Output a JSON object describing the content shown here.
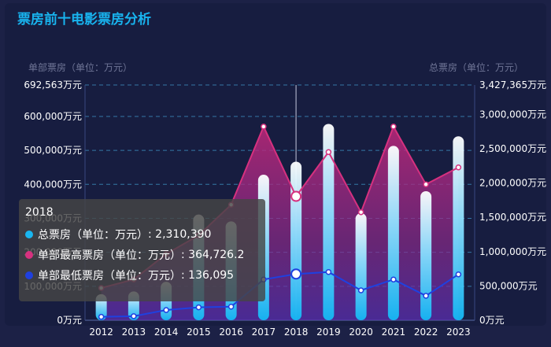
{
  "title": "票房前十电影票房分析",
  "chart_data": {
    "type": "bar",
    "categories": [
      "2012",
      "2013",
      "2014",
      "2015",
      "2016",
      "2017",
      "2018",
      "2019",
      "2020",
      "2021",
      "2022",
      "2023"
    ],
    "y_left": {
      "label": "单部票房（单位：万元）",
      "max": 692563,
      "ticks": [
        0,
        100000,
        200000,
        300000,
        400000,
        500000,
        600000,
        692563
      ],
      "tick_labels": [
        "0万元",
        "100,000万元",
        "200,000万元",
        "300,000万元",
        "400,000万元",
        "500,000万元",
        "600,000万元",
        "692,563万元"
      ]
    },
    "y_right": {
      "label": "总票房（单位：万元）",
      "max": 3427365,
      "ticks": [
        0,
        500000,
        1000000,
        1500000,
        2000000,
        2500000,
        3000000,
        3427365
      ],
      "tick_labels": [
        "0万元",
        "500,000万元",
        "1,000,000万元",
        "1,500,000万元",
        "2,000,000万元",
        "2,500,000万元",
        "3,000,000万元",
        "3,427,365万元"
      ]
    },
    "series": [
      {
        "name": "总票房（单位：万元）",
        "type": "bar",
        "axis": "right",
        "color": "#19b6f0",
        "values": [
          380000,
          420000,
          560000,
          1540000,
          1440000,
          2120000,
          2310390,
          2860000,
          1560000,
          2540000,
          1880000,
          2680000
        ]
      },
      {
        "name": "单部最高票房（单位：万元）",
        "type": "area",
        "axis": "left",
        "color": "#d6317f",
        "values": [
          95000,
          120000,
          195000,
          250000,
          340000,
          570000,
          364726.2,
          495000,
          318000,
          570000,
          400000,
          450000
        ]
      },
      {
        "name": "单部最低票房（单位：万元）",
        "type": "line",
        "axis": "left",
        "color": "#1f40e0",
        "values": [
          10000,
          12000,
          30000,
          38000,
          40000,
          120000,
          136095,
          142000,
          88000,
          120000,
          72000,
          135000
        ]
      }
    ],
    "tooltip": {
      "category": "2018",
      "rows": [
        {
          "label": "总票房（单位：万元）",
          "value": "2,310,390",
          "color": "#19b6f0"
        },
        {
          "label": "单部最高票房（单位：万元）",
          "value": "364,726.2",
          "color": "#d6317f"
        },
        {
          "label": "单部最低票房（单位：万元）",
          "value": "136,095",
          "color": "#1f40e0"
        }
      ]
    },
    "highlight_index": 6
  }
}
